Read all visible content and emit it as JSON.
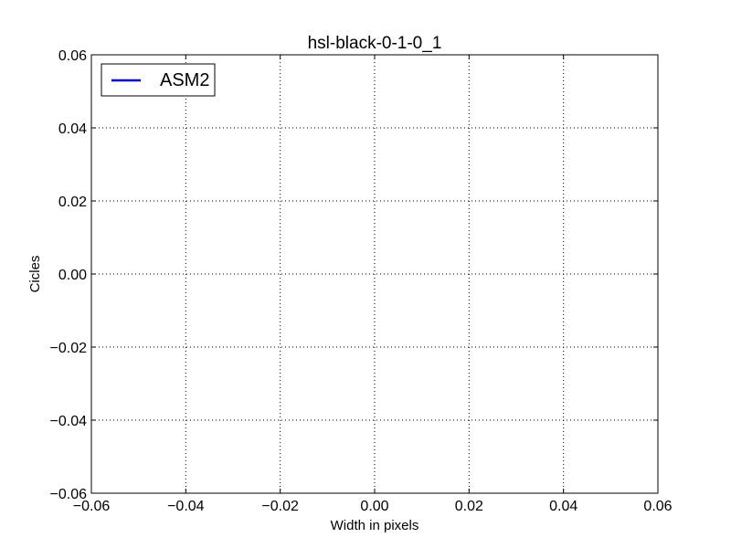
{
  "chart_data": {
    "type": "line",
    "title": "hsl-black-0-1-0_1",
    "xlabel": "Width in pixels",
    "ylabel": "Cicles",
    "xlim": [
      -0.06,
      0.06
    ],
    "ylim": [
      -0.06,
      0.06
    ],
    "xticks": [
      -0.06,
      -0.04,
      -0.02,
      0.0,
      0.02,
      0.04,
      0.06
    ],
    "yticks": [
      -0.06,
      -0.04,
      -0.02,
      0.0,
      0.02,
      0.04,
      0.06
    ],
    "xtick_labels": [
      "−0.06",
      "−0.04",
      "−0.02",
      "0.00",
      "0.02",
      "0.04",
      "0.06"
    ],
    "ytick_labels": [
      "−0.06",
      "−0.04",
      "−0.02",
      "0.00",
      "0.02",
      "0.04",
      "0.06"
    ],
    "grid": true,
    "legend_position": "top-left",
    "series": [
      {
        "name": "ASM2",
        "color": "#0000cc",
        "x": [],
        "y": []
      }
    ]
  }
}
